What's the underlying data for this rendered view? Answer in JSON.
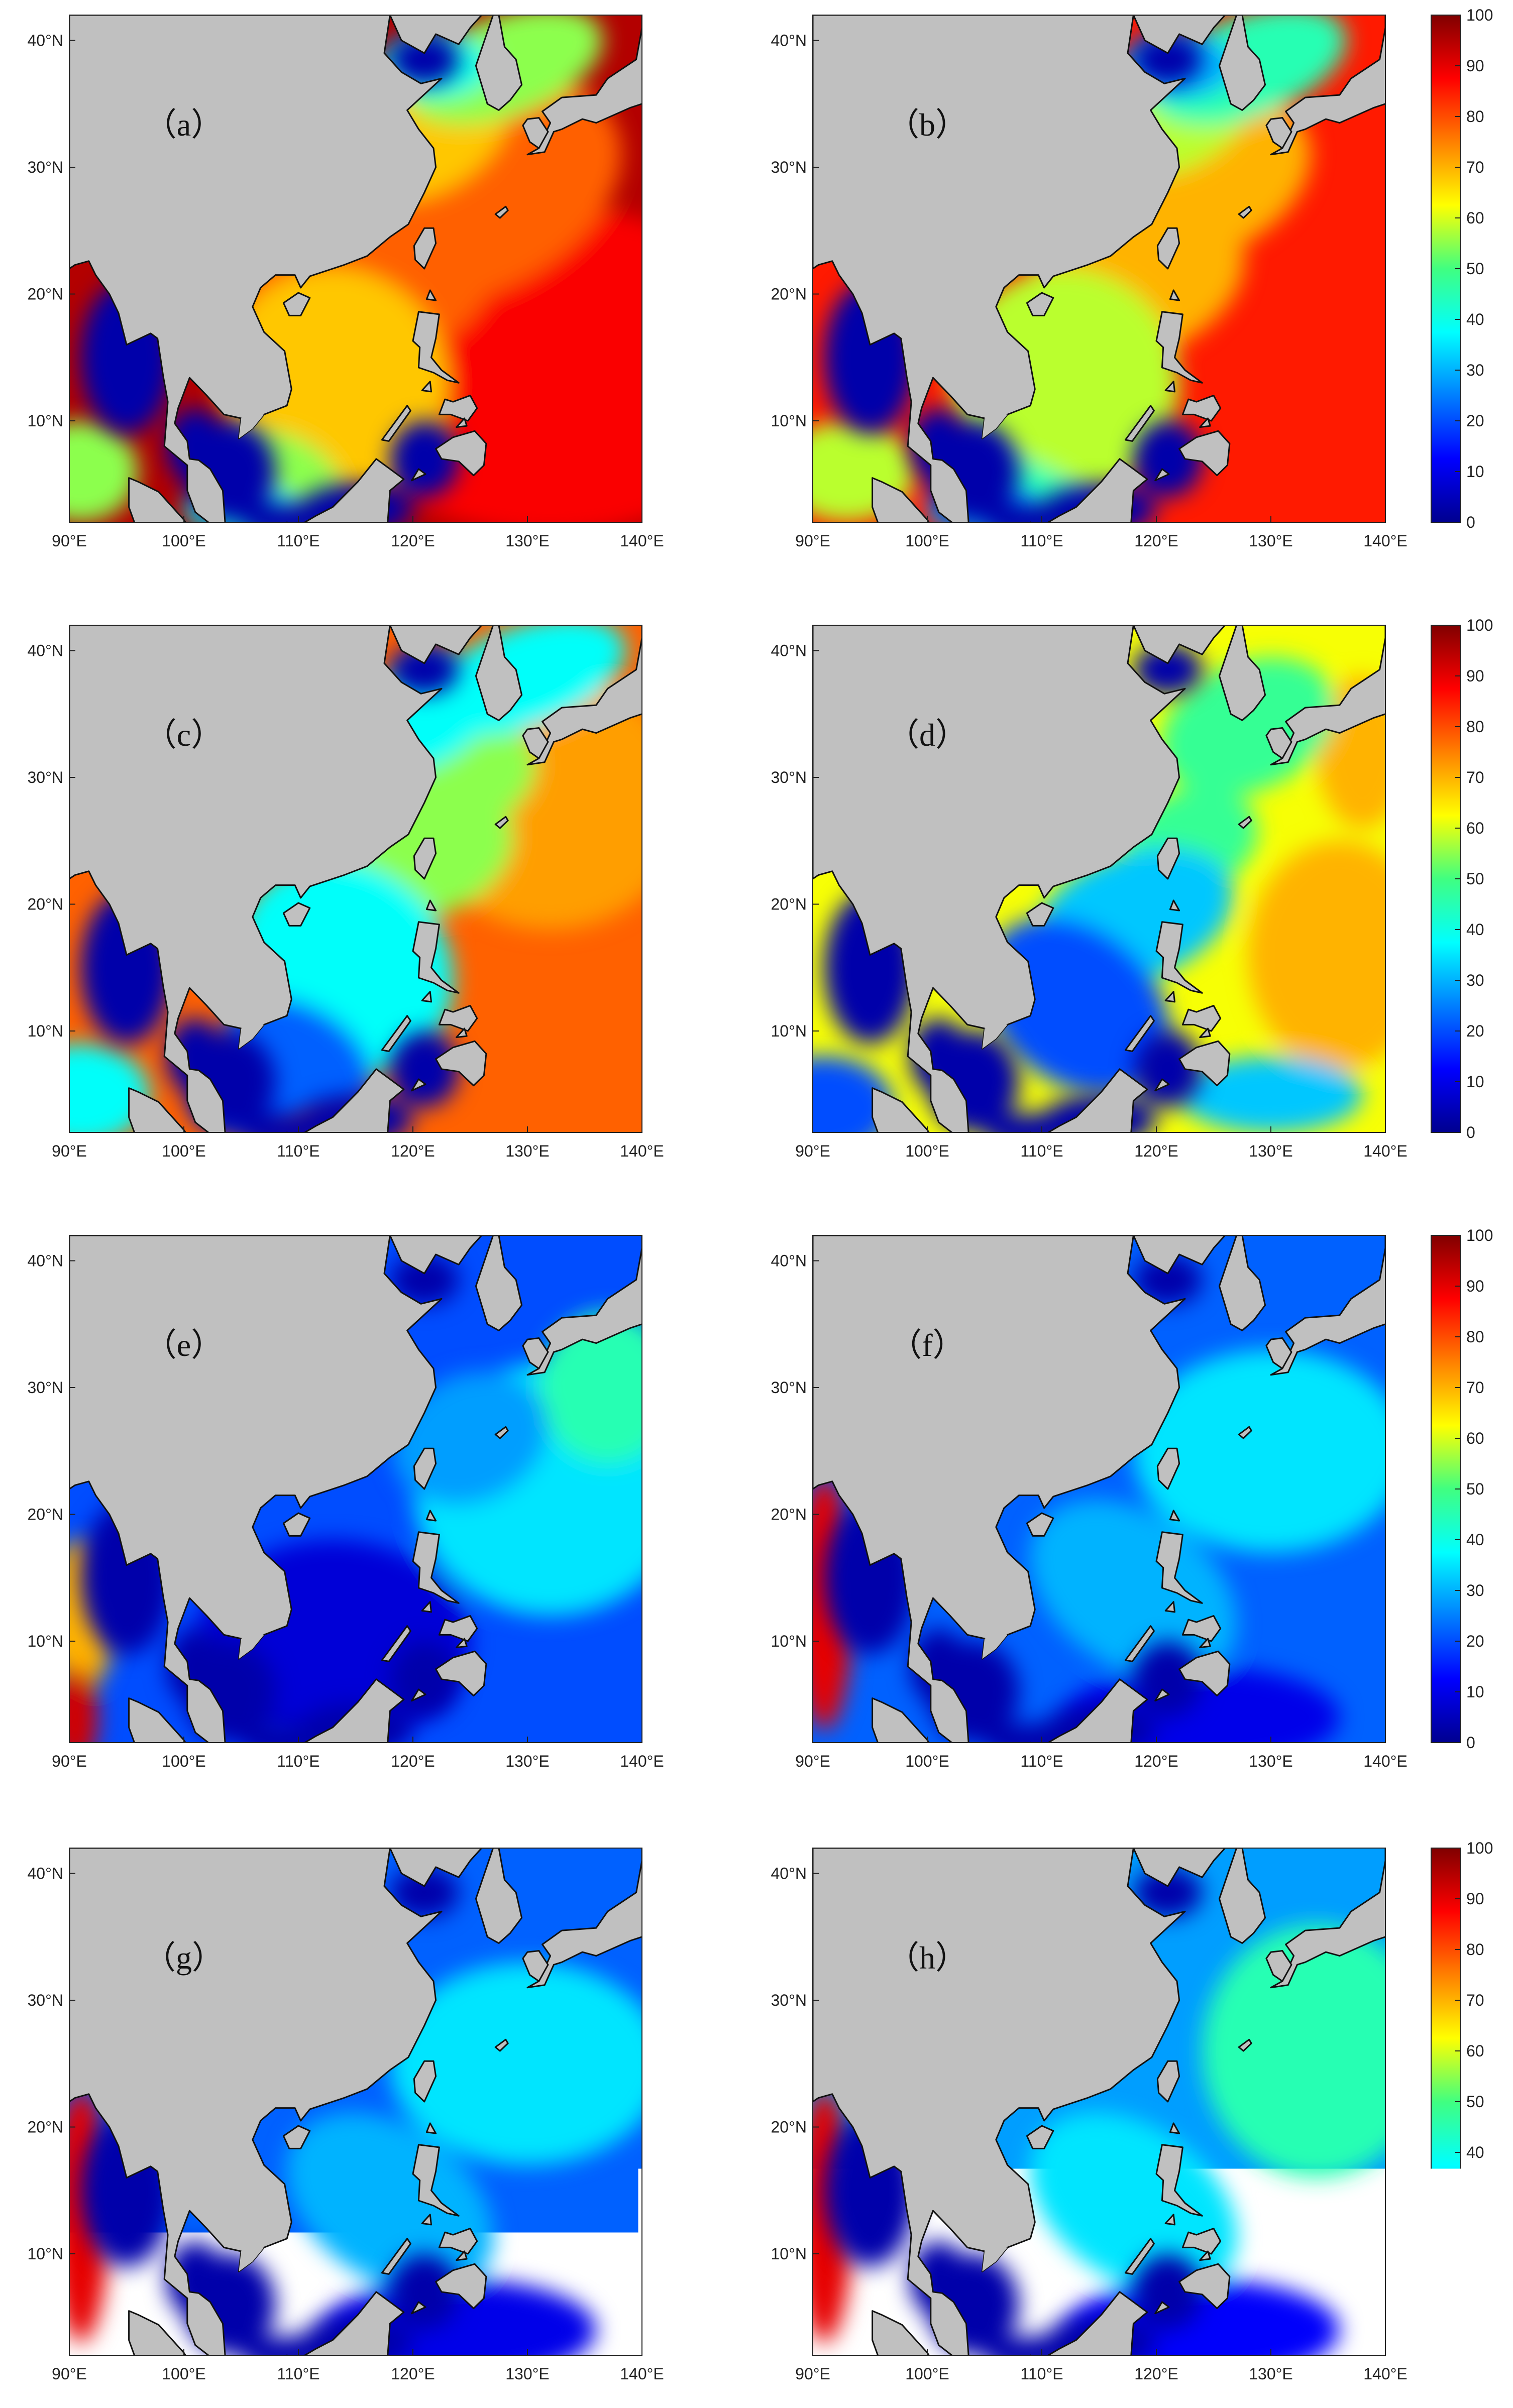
{
  "figure": {
    "x_ticks": [
      "90°E",
      "100°E",
      "110°E",
      "120°E",
      "130°E",
      "140°E"
    ],
    "y_ticks": [
      "10°N",
      "20°N",
      "30°N",
      "40°N"
    ],
    "land_color": "#c0c0c0",
    "ocean_palette": "jet",
    "colorbar": {
      "ticks": [
        "0",
        "10",
        "20",
        "30",
        "40",
        "50",
        "60",
        "70",
        "80",
        "90",
        "100"
      ],
      "range": [
        0,
        100
      ]
    },
    "panels": [
      {
        "label": "（a）",
        "pattern": "very-high"
      },
      {
        "label": "（b）",
        "pattern": "high"
      },
      {
        "label": "（c）",
        "pattern": "med-high"
      },
      {
        "label": "（d）",
        "pattern": "medium"
      },
      {
        "label": "（e）",
        "pattern": "low-west"
      },
      {
        "label": "（f）",
        "pattern": "low-west-red"
      },
      {
        "label": "（g）",
        "pattern": "low-west-red"
      },
      {
        "label": "（h）",
        "pattern": "low-west-red-b"
      }
    ]
  }
}
